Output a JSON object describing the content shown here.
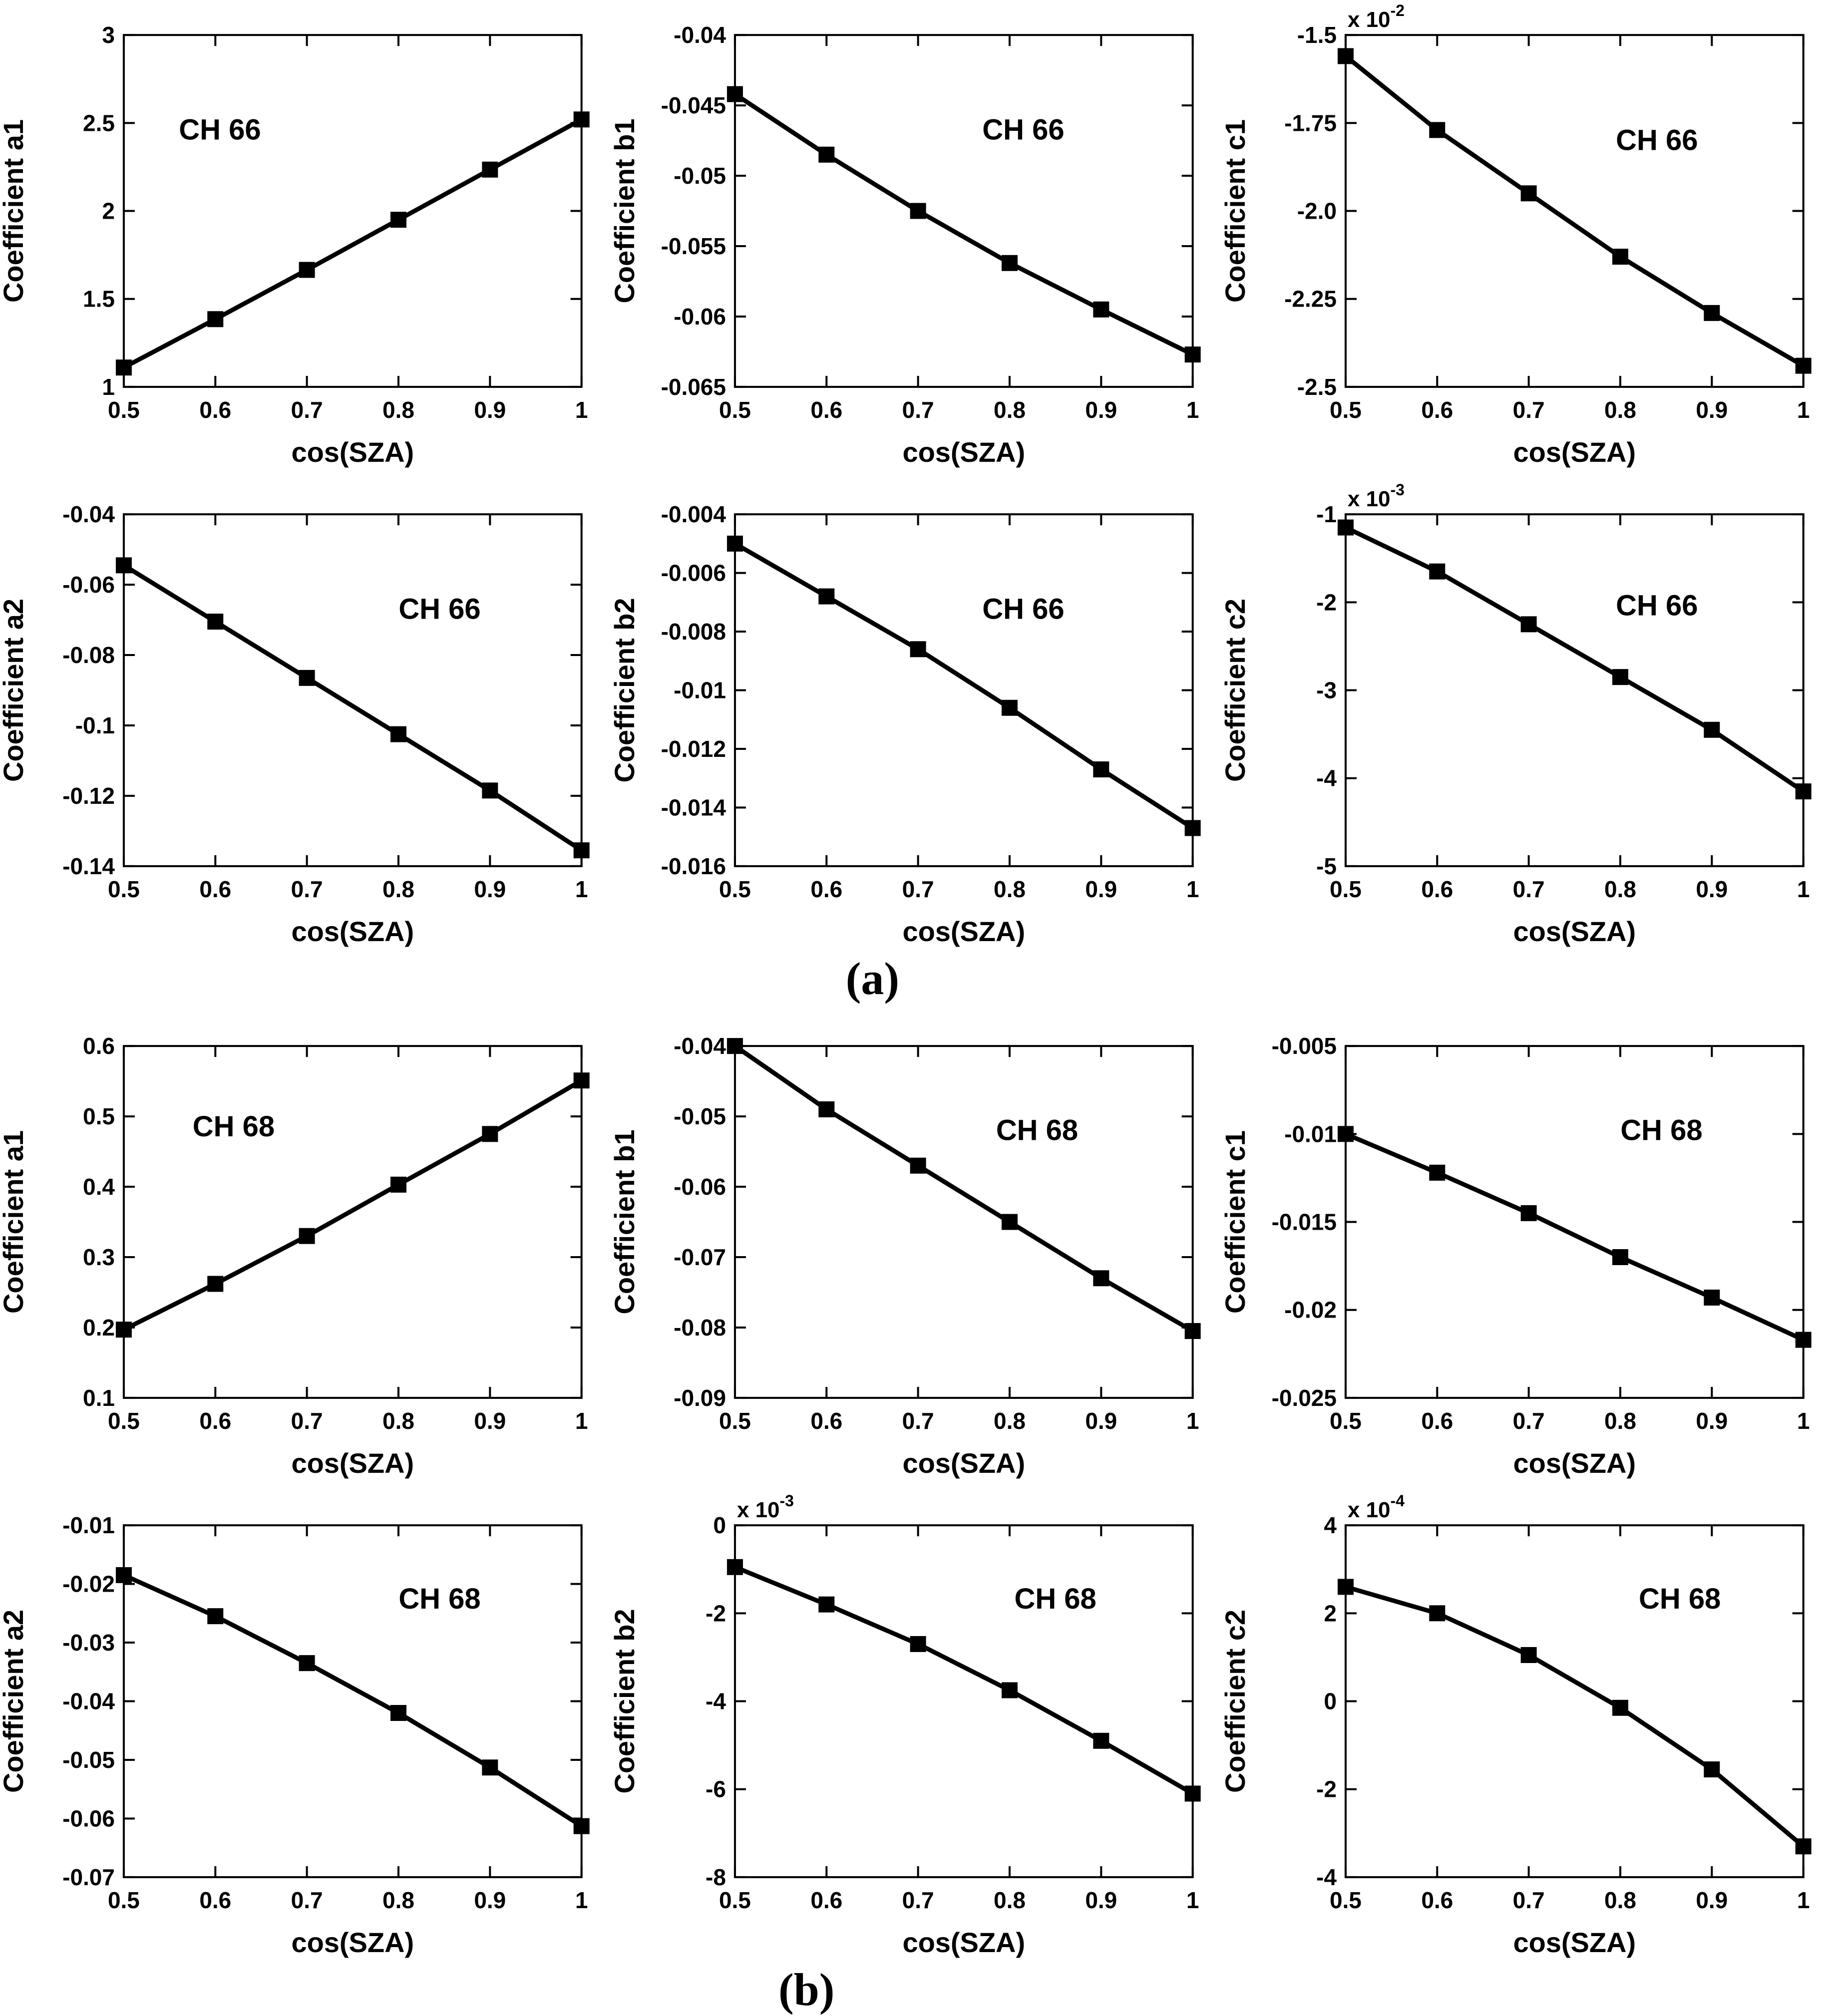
{
  "figure": {
    "panel_a_label": "(a)",
    "panel_b_label": "(b)",
    "background_color": "#ffffff",
    "line_color": "#000000",
    "marker": "filled-square"
  },
  "chart_data": [
    {
      "id": "ch66-a1",
      "type": "line",
      "annotation": {
        "text": "CH 66",
        "fx": 0.21,
        "fy": 0.27
      },
      "xlabel": "cos(SZA)",
      "ylabel": "Coefficient a1",
      "x": [
        0.5,
        0.6,
        0.7,
        0.8,
        0.9,
        1.0
      ],
      "y": [
        1.11,
        1.385,
        1.665,
        1.95,
        2.235,
        2.52
      ],
      "xlim": [
        0.5,
        1
      ],
      "ylim": [
        1,
        3
      ],
      "xticks": [
        0.5,
        0.6,
        0.7,
        0.8,
        0.9,
        1
      ],
      "xtick_labels": [
        "0.5",
        "0.6",
        "0.7",
        "0.8",
        "0.9",
        "1"
      ],
      "yticks": [
        1,
        1.5,
        2,
        2.5,
        3
      ],
      "ytick_labels": [
        "1",
        "1.5",
        "2",
        "2.5",
        "3"
      ],
      "multiplier_exp": null
    },
    {
      "id": "ch66-b1",
      "type": "line",
      "annotation": {
        "text": "CH 66",
        "fx": 0.63,
        "fy": 0.27
      },
      "xlabel": "cos(SZA)",
      "ylabel": "Coefficient b1",
      "x": [
        0.5,
        0.6,
        0.7,
        0.8,
        0.9,
        1.0
      ],
      "y": [
        -0.0442,
        -0.0485,
        -0.0525,
        -0.0562,
        -0.0595,
        -0.0627
      ],
      "xlim": [
        0.5,
        1
      ],
      "ylim": [
        -0.065,
        -0.04
      ],
      "xticks": [
        0.5,
        0.6,
        0.7,
        0.8,
        0.9,
        1
      ],
      "xtick_labels": [
        "0.5",
        "0.6",
        "0.7",
        "0.8",
        "0.9",
        "1"
      ],
      "yticks": [
        -0.065,
        -0.06,
        -0.055,
        -0.05,
        -0.045,
        -0.04
      ],
      "ytick_labels": [
        "-0.065",
        "-0.06",
        "-0.055",
        "-0.05",
        "-0.045",
        "-0.04"
      ],
      "multiplier_exp": null
    },
    {
      "id": "ch66-c1",
      "type": "line",
      "annotation": {
        "text": "CH 66",
        "fx": 0.68,
        "fy": 0.3
      },
      "xlabel": "cos(SZA)",
      "ylabel": "Coefficient c1",
      "x": [
        0.5,
        0.6,
        0.7,
        0.8,
        0.9,
        1.0
      ],
      "y": [
        -1.56,
        -1.77,
        -1.95,
        -2.13,
        -2.29,
        -2.44
      ],
      "xlim": [
        0.5,
        1
      ],
      "ylim": [
        -2.5,
        -1.5
      ],
      "xticks": [
        0.5,
        0.6,
        0.7,
        0.8,
        0.9,
        1
      ],
      "xtick_labels": [
        "0.5",
        "0.6",
        "0.7",
        "0.8",
        "0.9",
        "1"
      ],
      "yticks": [
        -2.5,
        -2.25,
        -2,
        -1.75,
        -1.5
      ],
      "ytick_labels": [
        "-2.5",
        "-2.25",
        "-2.0",
        "-1.75",
        "-1.5"
      ],
      "multiplier_exp": "-2"
    },
    {
      "id": "ch66-a2",
      "type": "line",
      "annotation": {
        "text": "CH 66",
        "fx": 0.69,
        "fy": 0.27
      },
      "xlabel": "cos(SZA)",
      "ylabel": "Coefficient a2",
      "x": [
        0.5,
        0.6,
        0.7,
        0.8,
        0.9,
        1.0
      ],
      "y": [
        -0.0545,
        -0.0705,
        -0.0865,
        -0.1025,
        -0.1185,
        -0.1355
      ],
      "xlim": [
        0.5,
        1
      ],
      "ylim": [
        -0.14,
        -0.04
      ],
      "xticks": [
        0.5,
        0.6,
        0.7,
        0.8,
        0.9,
        1
      ],
      "xtick_labels": [
        "0.5",
        "0.6",
        "0.7",
        "0.8",
        "0.9",
        "1"
      ],
      "yticks": [
        -0.14,
        -0.12,
        -0.1,
        -0.08,
        -0.06,
        -0.04
      ],
      "ytick_labels": [
        "-0.14",
        "-0.12",
        "-0.1",
        "-0.08",
        "-0.06",
        "-0.04"
      ],
      "multiplier_exp": null
    },
    {
      "id": "ch66-b2",
      "type": "line",
      "annotation": {
        "text": "CH 66",
        "fx": 0.63,
        "fy": 0.27
      },
      "xlabel": "cos(SZA)",
      "ylabel": "Coefficient b2",
      "x": [
        0.5,
        0.6,
        0.7,
        0.8,
        0.9,
        1.0
      ],
      "y": [
        -0.005,
        -0.0068,
        -0.0086,
        -0.0106,
        -0.0127,
        -0.0147
      ],
      "xlim": [
        0.5,
        1
      ],
      "ylim": [
        -0.016,
        -0.004
      ],
      "xticks": [
        0.5,
        0.6,
        0.7,
        0.8,
        0.9,
        1
      ],
      "xtick_labels": [
        "0.5",
        "0.6",
        "0.7",
        "0.8",
        "0.9",
        "1"
      ],
      "yticks": [
        -0.016,
        -0.014,
        -0.012,
        -0.01,
        -0.008,
        -0.006,
        -0.004
      ],
      "ytick_labels": [
        "-0.016",
        "-0.014",
        "-0.012",
        "-0.01",
        "-0.008",
        "-0.006",
        "-0.004"
      ],
      "multiplier_exp": null
    },
    {
      "id": "ch66-c2",
      "type": "line",
      "annotation": {
        "text": "CH 66",
        "fx": 0.68,
        "fy": 0.26
      },
      "xlabel": "cos(SZA)",
      "ylabel": "Coefficient c2",
      "x": [
        0.5,
        0.6,
        0.7,
        0.8,
        0.9,
        1.0
      ],
      "y": [
        -1.15,
        -1.65,
        -2.25,
        -2.85,
        -3.45,
        -4.15
      ],
      "xlim": [
        0.5,
        1
      ],
      "ylim": [
        -5,
        -1
      ],
      "xticks": [
        0.5,
        0.6,
        0.7,
        0.8,
        0.9,
        1
      ],
      "xtick_labels": [
        "0.5",
        "0.6",
        "0.7",
        "0.8",
        "0.9",
        "1"
      ],
      "yticks": [
        -5,
        -4,
        -3,
        -2,
        -1
      ],
      "ytick_labels": [
        "-5",
        "-4",
        "-3",
        "-2",
        "-1"
      ],
      "multiplier_exp": "-3"
    },
    {
      "id": "ch68-a1",
      "type": "line",
      "annotation": {
        "text": "CH 68",
        "fx": 0.24,
        "fy": 0.23
      },
      "xlabel": "cos(SZA)",
      "ylabel": "Coefficient a1",
      "x": [
        0.5,
        0.6,
        0.7,
        0.8,
        0.9,
        1.0
      ],
      "y": [
        0.197,
        0.262,
        0.33,
        0.403,
        0.475,
        0.551
      ],
      "xlim": [
        0.5,
        1
      ],
      "ylim": [
        0.1,
        0.6
      ],
      "xticks": [
        0.5,
        0.6,
        0.7,
        0.8,
        0.9,
        1
      ],
      "xtick_labels": [
        "0.5",
        "0.6",
        "0.7",
        "0.8",
        "0.9",
        "1"
      ],
      "yticks": [
        0.1,
        0.2,
        0.3,
        0.4,
        0.5,
        0.6
      ],
      "ytick_labels": [
        "0.1",
        "0.2",
        "0.3",
        "0.4",
        "0.5",
        "0.6"
      ],
      "multiplier_exp": null
    },
    {
      "id": "ch68-b1",
      "type": "line",
      "annotation": {
        "text": "CH 68",
        "fx": 0.66,
        "fy": 0.24
      },
      "xlabel": "cos(SZA)",
      "ylabel": "Coefficient b1",
      "x": [
        0.5,
        0.6,
        0.7,
        0.8,
        0.9,
        1.0
      ],
      "y": [
        -0.04,
        -0.049,
        -0.057,
        -0.065,
        -0.073,
        -0.0805
      ],
      "xlim": [
        0.5,
        1
      ],
      "ylim": [
        -0.09,
        -0.04
      ],
      "xticks": [
        0.5,
        0.6,
        0.7,
        0.8,
        0.9,
        1
      ],
      "xtick_labels": [
        "0.5",
        "0.6",
        "0.7",
        "0.8",
        "0.9",
        "1"
      ],
      "yticks": [
        -0.09,
        -0.08,
        -0.07,
        -0.06,
        -0.05,
        -0.04
      ],
      "ytick_labels": [
        "-0.09",
        "-0.08",
        "-0.07",
        "-0.06",
        "-0.05",
        "-0.04"
      ],
      "multiplier_exp": null
    },
    {
      "id": "ch68-c1",
      "type": "line",
      "annotation": {
        "text": "CH 68",
        "fx": 0.69,
        "fy": 0.24
      },
      "xlabel": "cos(SZA)",
      "ylabel": "Coefficient c1",
      "x": [
        0.5,
        0.6,
        0.7,
        0.8,
        0.9,
        1.0
      ],
      "y": [
        -0.01,
        -0.0122,
        -0.0145,
        -0.017,
        -0.0193,
        -0.0217
      ],
      "xlim": [
        0.5,
        1
      ],
      "ylim": [
        -0.025,
        -0.005
      ],
      "xticks": [
        0.5,
        0.6,
        0.7,
        0.8,
        0.9,
        1
      ],
      "xtick_labels": [
        "0.5",
        "0.6",
        "0.7",
        "0.8",
        "0.9",
        "1"
      ],
      "yticks": [
        -0.025,
        -0.02,
        -0.015,
        -0.01,
        -0.005
      ],
      "ytick_labels": [
        "-0.025",
        "-0.02",
        "-0.015",
        "-0.01",
        "-0.005"
      ],
      "multiplier_exp": null
    },
    {
      "id": "ch68-a2",
      "type": "line",
      "annotation": {
        "text": "CH 68",
        "fx": 0.69,
        "fy": 0.21
      },
      "xlabel": "cos(SZA)",
      "ylabel": "Coefficient a2",
      "x": [
        0.5,
        0.6,
        0.7,
        0.8,
        0.9,
        1.0
      ],
      "y": [
        -0.0185,
        -0.0255,
        -0.0335,
        -0.042,
        -0.0513,
        -0.0613
      ],
      "xlim": [
        0.5,
        1
      ],
      "ylim": [
        -0.07,
        -0.01
      ],
      "xticks": [
        0.5,
        0.6,
        0.7,
        0.8,
        0.9,
        1
      ],
      "xtick_labels": [
        "0.5",
        "0.6",
        "0.7",
        "0.8",
        "0.9",
        "1"
      ],
      "yticks": [
        -0.07,
        -0.06,
        -0.05,
        -0.04,
        -0.03,
        -0.02,
        -0.01
      ],
      "ytick_labels": [
        "-0.07",
        "-0.06",
        "-0.05",
        "-0.04",
        "-0.03",
        "-0.02",
        "-0.01"
      ],
      "multiplier_exp": null
    },
    {
      "id": "ch68-b2",
      "type": "line",
      "annotation": {
        "text": "CH 68",
        "fx": 0.7,
        "fy": 0.21
      },
      "xlabel": "cos(SZA)",
      "ylabel": "Coefficient b2",
      "x": [
        0.5,
        0.6,
        0.7,
        0.8,
        0.9,
        1.0
      ],
      "y": [
        -0.95,
        -1.8,
        -2.7,
        -3.75,
        -4.9,
        -6.1
      ],
      "xlim": [
        0.5,
        1
      ],
      "ylim": [
        -8,
        0
      ],
      "xticks": [
        0.5,
        0.6,
        0.7,
        0.8,
        0.9,
        1
      ],
      "xtick_labels": [
        "0.5",
        "0.6",
        "0.7",
        "0.8",
        "0.9",
        "1"
      ],
      "yticks": [
        -8,
        -6,
        -4,
        -2,
        0
      ],
      "ytick_labels": [
        "-8",
        "-6",
        "-4",
        "-2",
        "0"
      ],
      "multiplier_exp": "-3"
    },
    {
      "id": "ch68-c2",
      "type": "line",
      "annotation": {
        "text": "CH 68",
        "fx": 0.73,
        "fy": 0.21
      },
      "xlabel": "cos(SZA)",
      "ylabel": "Coefficient c2",
      "x": [
        0.5,
        0.6,
        0.7,
        0.8,
        0.9,
        1.0
      ],
      "y": [
        2.6,
        2.0,
        1.05,
        -0.15,
        -1.55,
        -3.3
      ],
      "xlim": [
        0.5,
        1
      ],
      "ylim": [
        -4,
        4
      ],
      "xticks": [
        0.5,
        0.6,
        0.7,
        0.8,
        0.9,
        1
      ],
      "xtick_labels": [
        "0.5",
        "0.6",
        "0.7",
        "0.8",
        "0.9",
        "1"
      ],
      "yticks": [
        -4,
        -2,
        0,
        2,
        4
      ],
      "ytick_labels": [
        "-4",
        "-2",
        "0",
        "2",
        "4"
      ],
      "multiplier_exp": "-4"
    }
  ]
}
